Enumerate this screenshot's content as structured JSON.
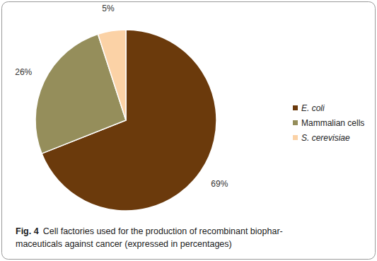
{
  "chart_data": {
    "type": "pie",
    "title": "Fig. 4",
    "subtitle": [
      "Cell factories used for the production of recombinant biophar-",
      "maceuticals against cancer (expressed in percentages)"
    ],
    "categories": [
      "E. coli",
      "Mammalian cells",
      "S. cerevisiae"
    ],
    "values": [
      69,
      26,
      5
    ],
    "value_labels": [
      "69%",
      "26%",
      "5%"
    ],
    "colors": [
      "#6b3a0c",
      "#958e5b",
      "#fbd2a6"
    ],
    "data_labels": true,
    "legend": "right"
  }
}
